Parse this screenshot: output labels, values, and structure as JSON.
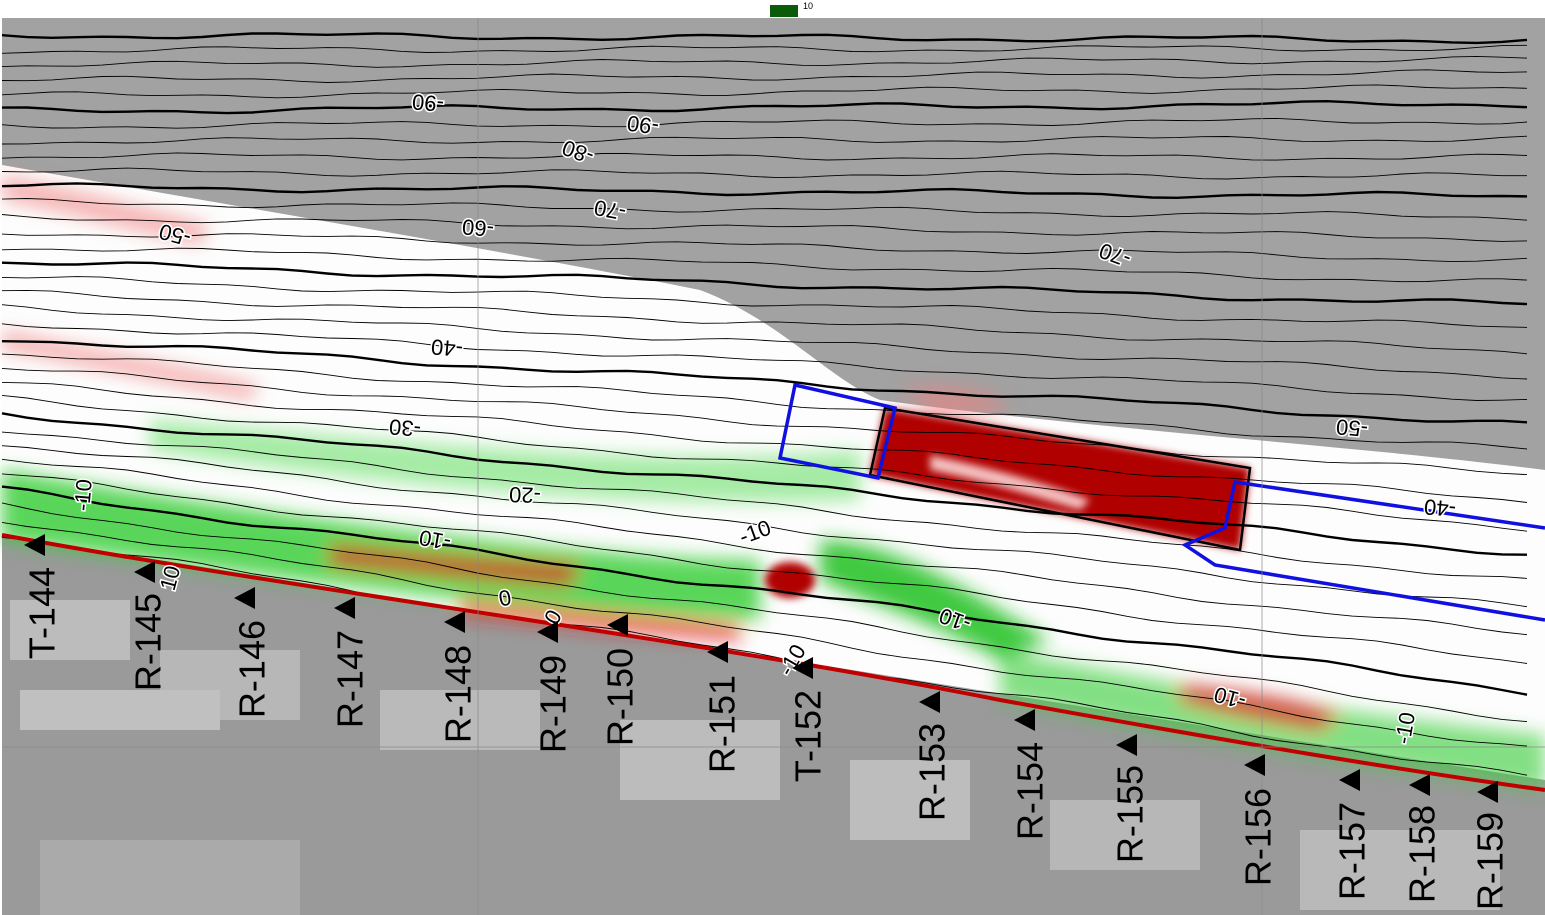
{
  "legend": {
    "label": "10"
  },
  "contours": [
    {
      "label": "-90"
    },
    {
      "label": "-90"
    },
    {
      "label": "-80"
    },
    {
      "label": "-70"
    },
    {
      "label": "-60"
    },
    {
      "label": "-50"
    },
    {
      "label": "-70"
    },
    {
      "label": "-40"
    },
    {
      "label": "-30"
    },
    {
      "label": "-20"
    },
    {
      "label": "-10"
    },
    {
      "label": "-10"
    },
    {
      "label": "-10"
    },
    {
      "label": "10"
    },
    {
      "label": "0"
    },
    {
      "label": "0"
    },
    {
      "label": "-10"
    },
    {
      "label": "-10"
    },
    {
      "label": "-10"
    },
    {
      "label": "-50"
    },
    {
      "label": "-40"
    },
    {
      "label": "-10"
    }
  ],
  "monuments": [
    {
      "label": "T-144"
    },
    {
      "label": "R-145"
    },
    {
      "label": "R-146"
    },
    {
      "label": "R-147"
    },
    {
      "label": "R-148"
    },
    {
      "label": "R-149"
    },
    {
      "label": "R-150"
    },
    {
      "label": "R-151"
    },
    {
      "label": "T-152"
    },
    {
      "label": "R-153"
    },
    {
      "label": "R-154"
    },
    {
      "label": "R-155"
    },
    {
      "label": "R-156"
    },
    {
      "label": "R-157"
    },
    {
      "label": "R-158"
    },
    {
      "label": "R-159"
    }
  ]
}
